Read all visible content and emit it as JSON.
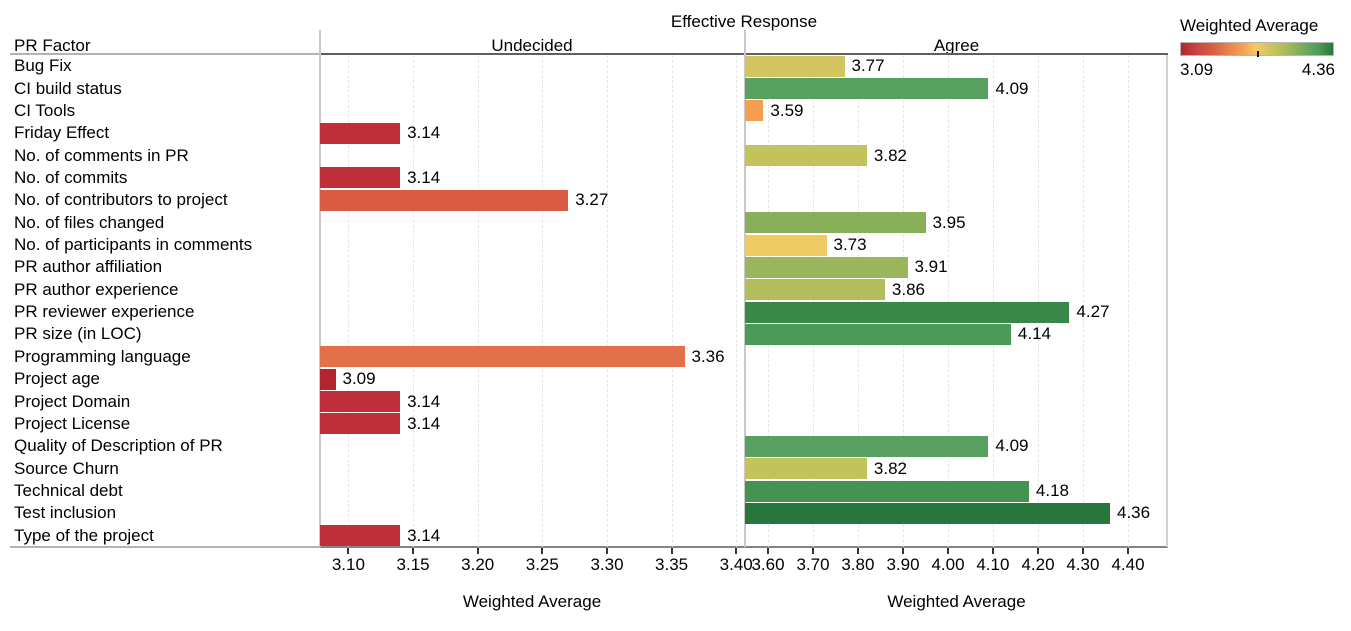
{
  "title": "Effective Response",
  "row_header_label": "PR Factor",
  "legend": {
    "title": "Weighted Average",
    "min_label": "3.09",
    "max_label": "4.36"
  },
  "panels": [
    {
      "label": "Undecided",
      "axis_title": "Weighted Average",
      "domain": [
        3.078,
        3.406
      ],
      "ticks": [
        3.1,
        3.15,
        3.2,
        3.25,
        3.3,
        3.35,
        3.4
      ],
      "tick_labels": [
        "3.10",
        "3.15",
        "3.20",
        "3.25",
        "3.30",
        "3.35",
        "3.40"
      ]
    },
    {
      "label": "Agree",
      "axis_title": "Weighted Average",
      "domain": [
        3.549,
        4.489
      ],
      "ticks": [
        3.6,
        3.7,
        3.8,
        3.9,
        4.0,
        4.1,
        4.2,
        4.3,
        4.4
      ],
      "tick_labels": [
        "3.60",
        "3.70",
        "3.80",
        "3.90",
        "4.00",
        "4.10",
        "4.20",
        "4.30",
        "4.40"
      ]
    }
  ],
  "chart_data": {
    "type": "bar",
    "orientation": "horizontal",
    "title": "Effective Response",
    "row_header": "PR Factor",
    "xlabel": "Weighted Average",
    "grid": "vertical-dashed",
    "categories": [
      "Bug Fix",
      "CI build status",
      "CI Tools",
      "Friday Effect",
      "No. of comments in PR",
      "No. of commits",
      "No. of contributors to project",
      "No. of files changed",
      "No. of participants in comments",
      "PR author affiliation",
      "PR author experience",
      "PR reviewer experience",
      "PR size (in LOC)",
      "Programming language",
      "Project age",
      "Project Domain",
      "Project License",
      "Quality of Description of PR",
      "Source Churn",
      "Technical debt",
      "Test inclusion",
      "Type of the project"
    ],
    "series": [
      {
        "name": "Undecided",
        "values": [
          null,
          null,
          null,
          3.14,
          null,
          3.14,
          3.27,
          null,
          null,
          null,
          null,
          null,
          null,
          3.36,
          3.09,
          3.14,
          3.14,
          null,
          null,
          null,
          null,
          3.14
        ]
      },
      {
        "name": "Agree",
        "values": [
          3.77,
          4.09,
          3.59,
          null,
          3.82,
          null,
          null,
          3.95,
          3.73,
          3.91,
          3.86,
          4.27,
          4.14,
          null,
          null,
          null,
          null,
          4.09,
          3.82,
          4.18,
          4.36,
          null
        ]
      }
    ],
    "color_scale": {
      "label": "Weighted Average",
      "min": 3.09,
      "max": 4.36,
      "palette": "red-yellow-green",
      "min_color": "#b2242e",
      "max_color": "#28763c"
    },
    "value_colors": {
      "3.09": "#b2242e",
      "3.14": "#bf2e39",
      "3.27": "#d95b43",
      "3.36": "#e2714a",
      "3.59": "#f59e50",
      "3.73": "#efca62",
      "3.77": "#d5c562",
      "3.82": "#c2c35b",
      "3.86": "#b2bd5c",
      "3.91": "#9ab65d",
      "3.95": "#89af5a",
      "4.09": "#58a05f",
      "4.14": "#4c9a57",
      "4.18": "#459351",
      "4.27": "#3a8849",
      "4.36": "#28763c"
    }
  }
}
